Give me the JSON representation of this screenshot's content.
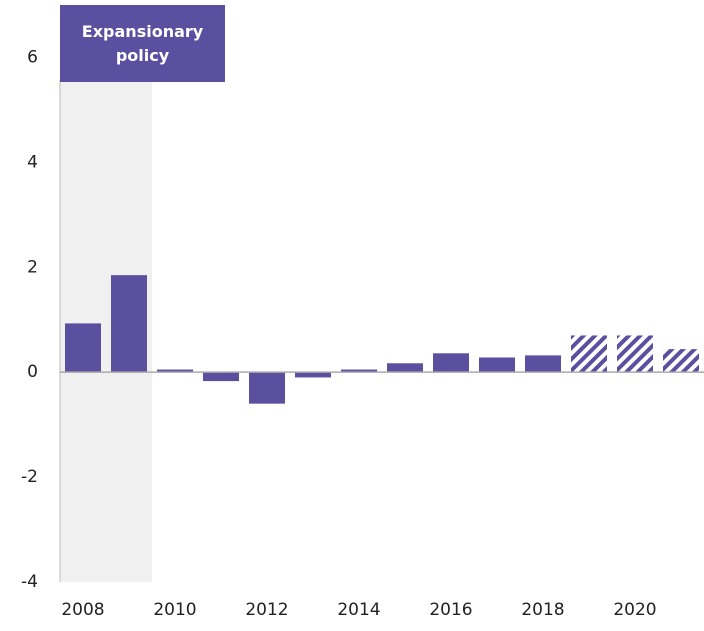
{
  "chart_data": {
    "type": "bar",
    "categories": [
      "2008",
      null,
      "2010",
      null,
      "2012",
      null,
      "2014",
      null,
      "2016",
      null,
      "2018",
      null,
      "2020",
      null
    ],
    "values": [
      0.93,
      1.85,
      0.05,
      -0.17,
      -0.6,
      -0.1,
      0.05,
      0.17,
      0.36,
      0.28,
      0.32,
      0.7,
      0.7,
      0.44
    ],
    "hatched": [
      false,
      false,
      false,
      false,
      false,
      false,
      false,
      false,
      false,
      false,
      false,
      true,
      true,
      true
    ],
    "color": "#5b4fa0",
    "ylim": [
      -4,
      7
    ],
    "yticks": [
      -4,
      -2,
      0,
      2,
      4,
      6
    ],
    "annotation": {
      "text": "Expansionary policy"
    }
  }
}
